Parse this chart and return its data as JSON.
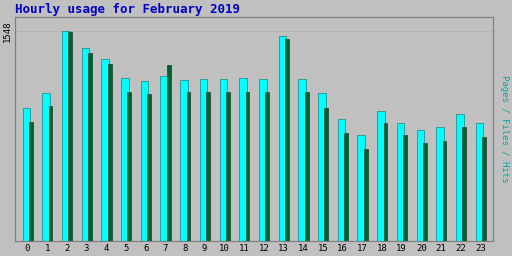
{
  "title": "Hourly usage for February 2019",
  "title_color": "#0000cc",
  "title_fontsize": 9,
  "background_color": "#c0c0c0",
  "plot_bg_color": "#c0c0c0",
  "hours": [
    0,
    1,
    2,
    3,
    4,
    5,
    6,
    7,
    8,
    9,
    10,
    11,
    12,
    13,
    14,
    15,
    16,
    17,
    18,
    19,
    20,
    21,
    22,
    23
  ],
  "hits": [
    980,
    1090,
    1548,
    1420,
    1340,
    1200,
    1180,
    1215,
    1185,
    1195,
    1195,
    1200,
    1195,
    1510,
    1195,
    1090,
    900,
    780,
    960,
    870,
    820,
    840,
    940,
    870
  ],
  "pages": [
    875,
    995,
    1540,
    1385,
    1305,
    1100,
    1080,
    1295,
    1095,
    1100,
    1095,
    1100,
    1095,
    1485,
    1095,
    980,
    800,
    680,
    870,
    780,
    720,
    740,
    840,
    770
  ],
  "cyan_color": "#00ffff",
  "green_color": "#006030",
  "ylabel_right": "Pages / Files / Hits",
  "bar_width": 0.35,
  "ylim": [
    0,
    1650
  ],
  "grid_color": "#b0b0b0",
  "border_color": "#808080",
  "figwidth": 5.12,
  "figheight": 2.56,
  "dpi": 100
}
